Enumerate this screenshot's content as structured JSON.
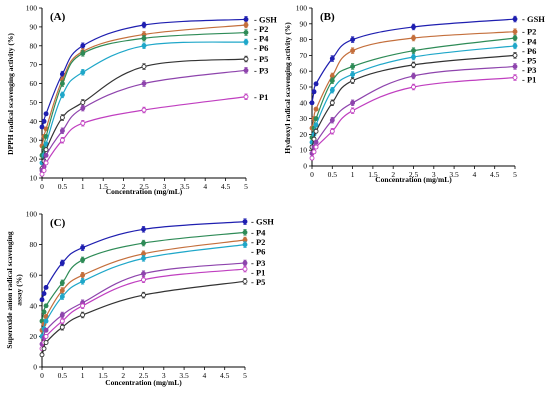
{
  "chart_data": [
    {
      "type": "line",
      "panel_label": "(A)",
      "xlabel": "Concentration (mg/mL)",
      "ylabel": "DPPH radical scavenging activity (%)",
      "x_ticks": [
        "0",
        "0.5",
        "1",
        "1.5",
        "2",
        "2.5",
        "3",
        "3.5",
        "4",
        "4.5",
        "5"
      ],
      "y_ticks": [
        "10",
        "20",
        "30",
        "40",
        "50",
        "60",
        "70",
        "80",
        "90",
        "100"
      ],
      "xlim": [
        0,
        5
      ],
      "ylim": [
        10,
        100
      ],
      "x": [
        0,
        0.05,
        0.1,
        0.5,
        1,
        2.5,
        5
      ],
      "series": [
        {
          "name": "GSH",
          "color": "#1f1fb0",
          "marker": "circle",
          "values": [
            37,
            40,
            44,
            65,
            80,
            91,
            94
          ]
        },
        {
          "name": "P2",
          "color": "#c46f3c",
          "marker": "circle",
          "values": [
            27,
            32,
            36,
            62,
            77,
            86,
            91
          ]
        },
        {
          "name": "P4",
          "color": "#2e8b57",
          "marker": "circle",
          "values": [
            22,
            26,
            32,
            60,
            76,
            84,
            87
          ]
        },
        {
          "name": "P6",
          "color": "#1fa7c9",
          "marker": "circle",
          "values": [
            18,
            22,
            28,
            54,
            66,
            80,
            82
          ]
        },
        {
          "name": "P5",
          "color": "#333333",
          "marker": "open-circle",
          "values": [
            15,
            19,
            25,
            42,
            50,
            69,
            73
          ]
        },
        {
          "name": "P3",
          "color": "#8e44ad",
          "marker": "circle",
          "values": [
            14,
            16,
            22,
            35,
            47,
            60,
            67
          ]
        },
        {
          "name": "P1",
          "color": "#c03fc0",
          "marker": "open-circle",
          "values": [
            12,
            14,
            18,
            30,
            39,
            46,
            53
          ]
        }
      ]
    },
    {
      "type": "line",
      "panel_label": "(B)",
      "xlabel": "Concentration (mg/mL)",
      "ylabel": "Hydroxyl radical scavenging activity (%)",
      "x_ticks": [
        "0",
        "0.5",
        "1",
        "1.5",
        "2",
        "2.5",
        "3",
        "3.5",
        "4",
        "4.5",
        "5"
      ],
      "y_ticks": [
        "0",
        "10",
        "20",
        "30",
        "40",
        "50",
        "60",
        "70",
        "80",
        "90",
        "100"
      ],
      "xlim": [
        0,
        5
      ],
      "ylim": [
        0,
        100
      ],
      "x": [
        0,
        0.05,
        0.1,
        0.5,
        1,
        2.5,
        5
      ],
      "series": [
        {
          "name": "GSH",
          "color": "#1f1fb0",
          "marker": "circle",
          "values": [
            40,
            47,
            52,
            68,
            80,
            88,
            93
          ]
        },
        {
          "name": "P2",
          "color": "#c46f3c",
          "marker": "circle",
          "values": [
            24,
            30,
            36,
            57,
            73,
            81,
            85
          ]
        },
        {
          "name": "P4",
          "color": "#2e8b57",
          "marker": "circle",
          "values": [
            18,
            24,
            30,
            54,
            63,
            73,
            81
          ]
        },
        {
          "name": "P6",
          "color": "#1fa7c9",
          "marker": "circle",
          "values": [
            15,
            20,
            26,
            48,
            58,
            69,
            76
          ]
        },
        {
          "name": "P5",
          "color": "#333333",
          "marker": "open-circle",
          "values": [
            12,
            17,
            22,
            40,
            54,
            64,
            70
          ]
        },
        {
          "name": "P3",
          "color": "#8e44ad",
          "marker": "circle",
          "values": [
            8,
            12,
            15,
            29,
            40,
            57,
            63
          ]
        },
        {
          "name": "P1",
          "color": "#c03fc0",
          "marker": "open-circle",
          "values": [
            5,
            9,
            12,
            22,
            35,
            50,
            56
          ]
        }
      ]
    },
    {
      "type": "line",
      "panel_label": "(C)",
      "xlabel": "Concentration (mg/mL)",
      "ylabel": "Superoxide anion radical scavenging assay (%)",
      "ylabel_lines": [
        "Superoxide anion radical scavenging",
        "assay (%)"
      ],
      "x_ticks": [
        "0",
        "0.5",
        "1",
        "1.5",
        "2",
        "2.5",
        "3",
        "3.5",
        "4",
        "4.5",
        "5"
      ],
      "y_ticks": [
        "0",
        "20",
        "40",
        "60",
        "80",
        "100"
      ],
      "xlim": [
        0,
        5
      ],
      "ylim": [
        0,
        100
      ],
      "x": [
        0,
        0.05,
        0.1,
        0.5,
        1,
        2.5,
        5
      ],
      "series": [
        {
          "name": "GSH",
          "color": "#1f1fb0",
          "marker": "circle",
          "values": [
            44,
            48,
            52,
            68,
            78,
            90,
            95
          ]
        },
        {
          "name": "P4",
          "color": "#2e8b57",
          "marker": "circle",
          "values": [
            30,
            36,
            40,
            55,
            70,
            81,
            88
          ]
        },
        {
          "name": "P2",
          "color": "#c46f3c",
          "marker": "circle",
          "values": [
            24,
            28,
            33,
            50,
            60,
            74,
            83
          ]
        },
        {
          "name": "P6",
          "color": "#1fa7c9",
          "marker": "circle",
          "values": [
            20,
            25,
            30,
            46,
            56,
            71,
            80
          ]
        },
        {
          "name": "P3",
          "color": "#8e44ad",
          "marker": "circle",
          "values": [
            15,
            19,
            24,
            34,
            42,
            61,
            68
          ]
        },
        {
          "name": "P1",
          "color": "#c03fc0",
          "marker": "open-circle",
          "values": [
            12,
            16,
            20,
            30,
            40,
            57,
            64
          ]
        },
        {
          "name": "P5",
          "color": "#333333",
          "marker": "open-circle",
          "values": [
            8,
            12,
            16,
            26,
            34,
            47,
            56
          ]
        }
      ]
    }
  ]
}
